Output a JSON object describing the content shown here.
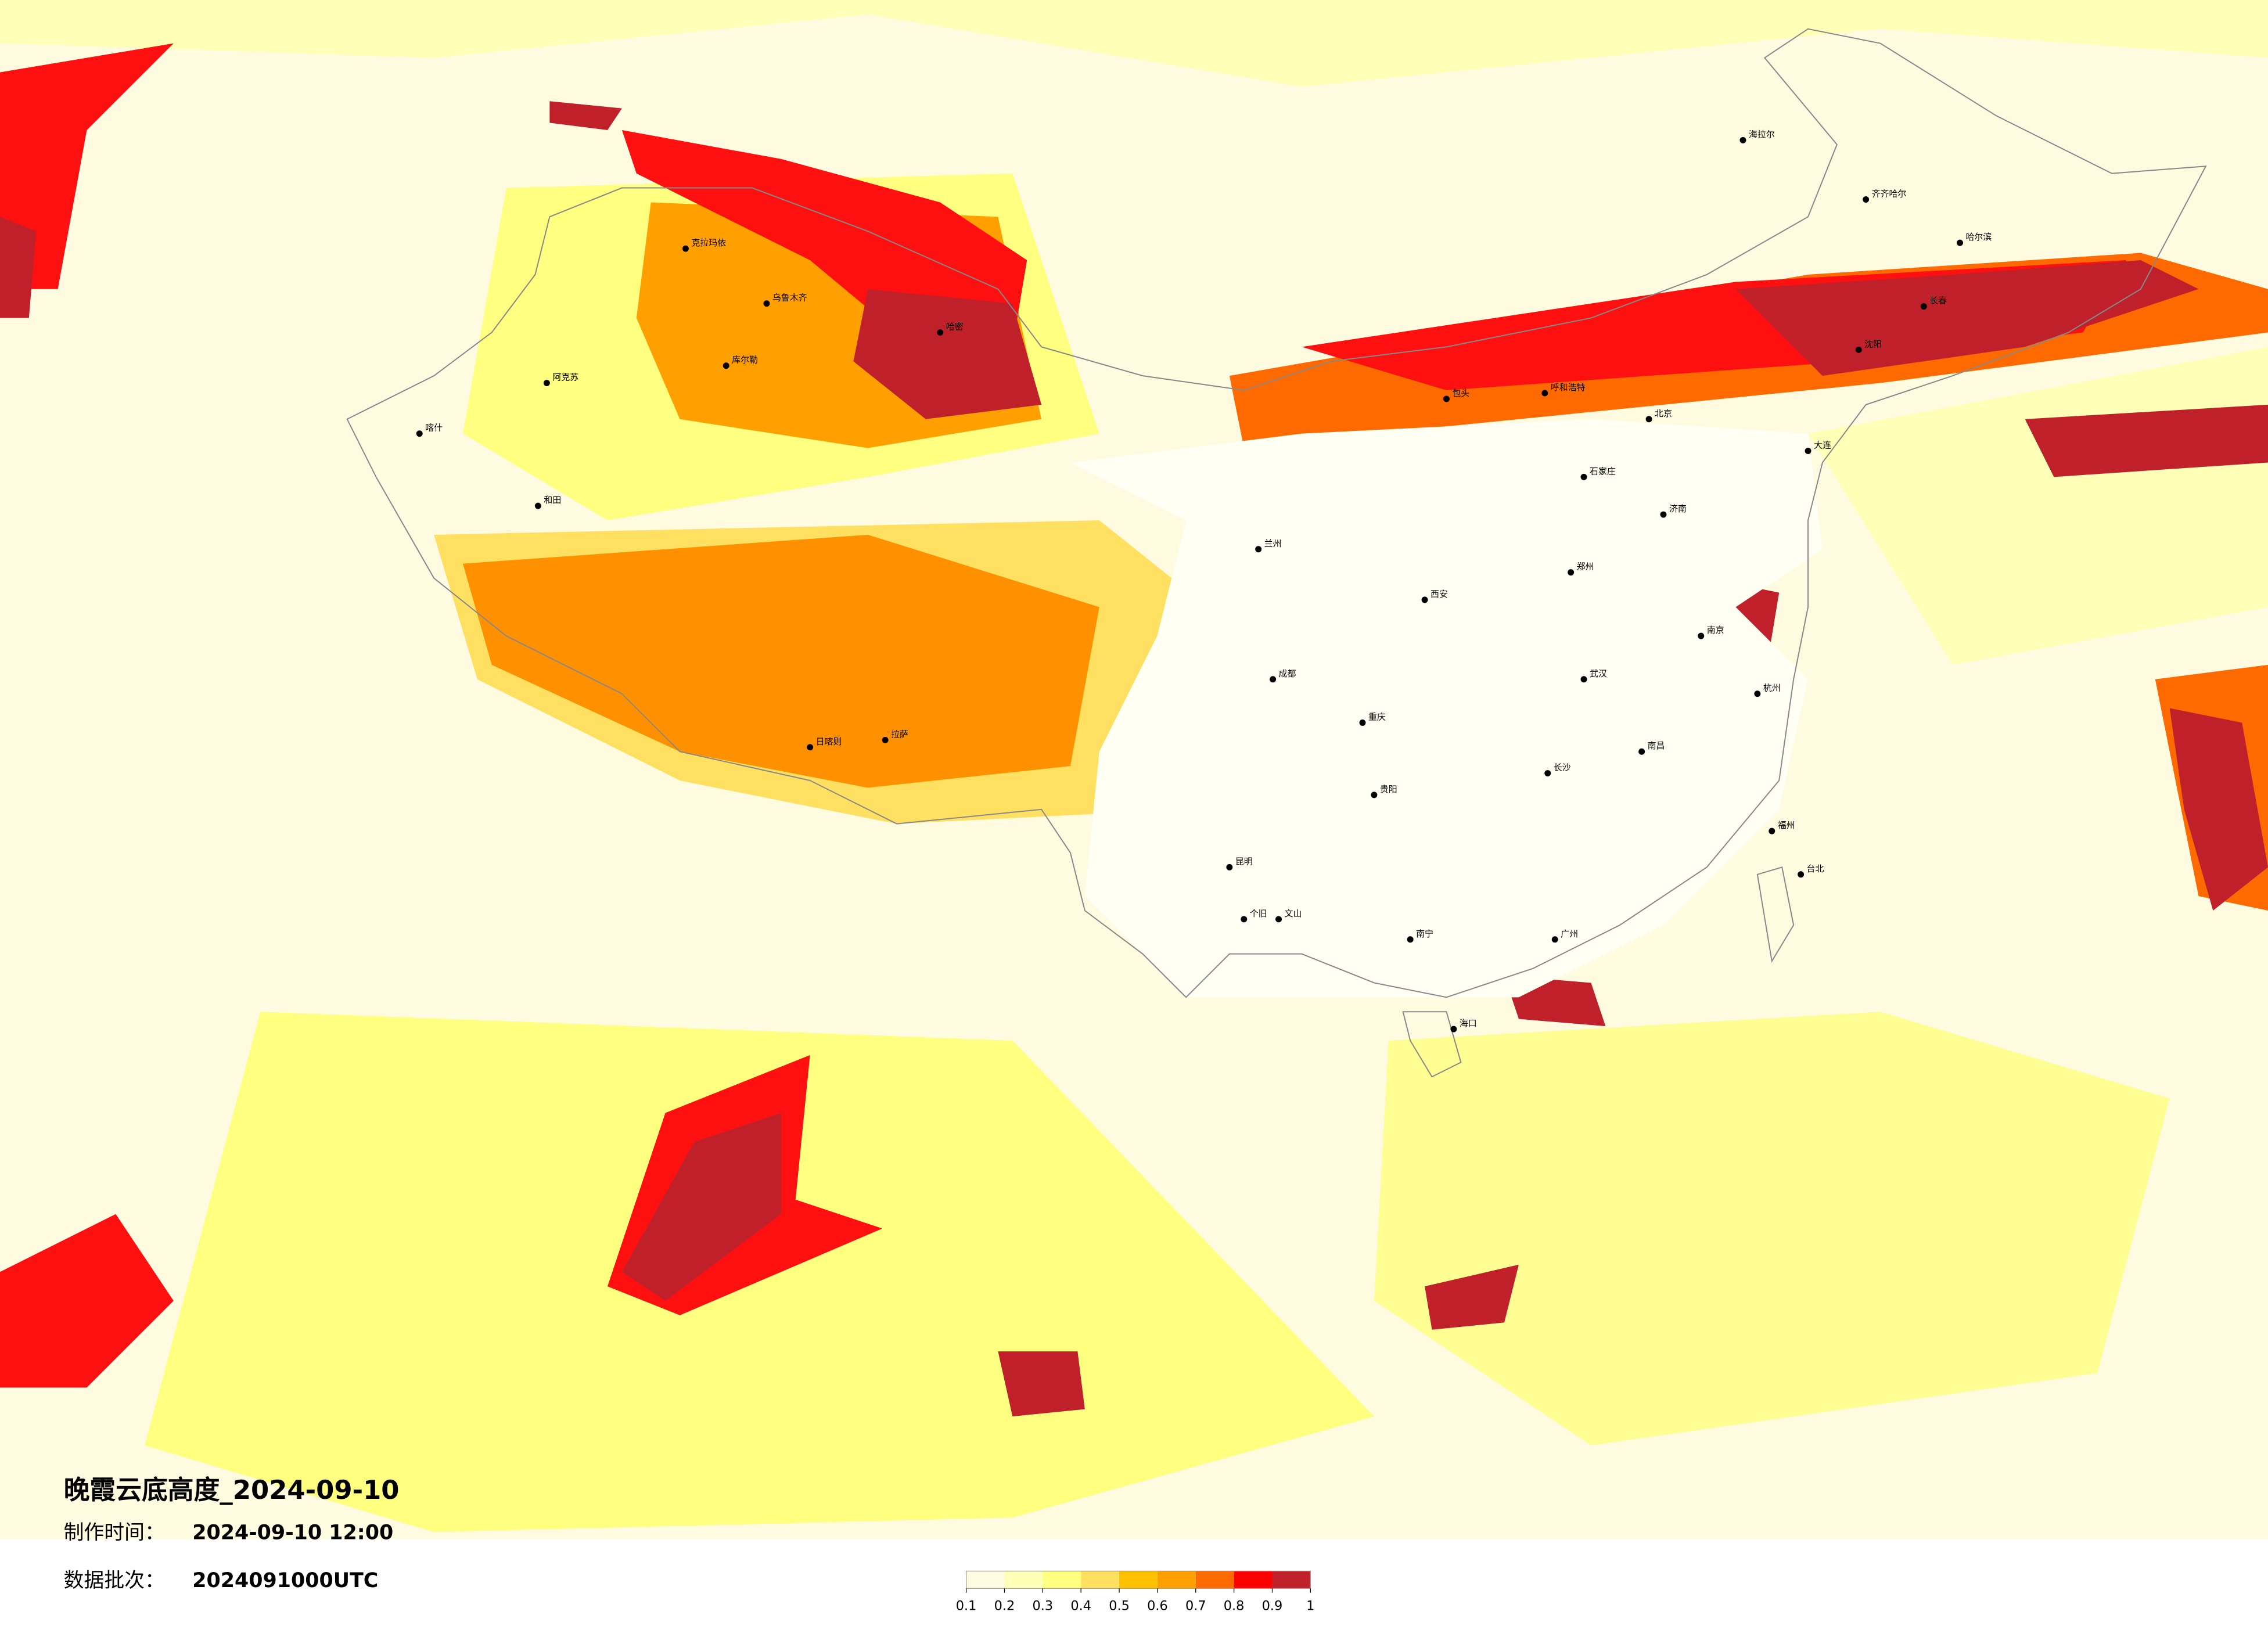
{
  "title": "晚霞云底高度_2024-09-10",
  "made_label": "制作时间：",
  "made_time": "2024-09-10 12:00",
  "batch_label": "数据批次：",
  "batch": "2024091000UTC",
  "colorbar": {
    "ticks": [
      0.1,
      0.2,
      0.3,
      0.4,
      0.5,
      0.6,
      0.7,
      0.8,
      0.9,
      1
    ],
    "colors": [
      "#fffbe0",
      "#ffffb8",
      "#ffff80",
      "#ffe060",
      "#ffc000",
      "#ffa000",
      "#ff6a00",
      "#ff0000",
      "#c0202a"
    ]
  },
  "cities": [
    "克拉玛依",
    "乌鲁木齐",
    "库尔勒",
    "阿克苏",
    "喀什",
    "和田",
    "哈密",
    "日喀则",
    "拉萨",
    "海拉尔",
    "齐齐哈尔",
    "哈尔滨",
    "长春",
    "沈阳",
    "大连",
    "北京",
    "石家庄",
    "呼和浩特",
    "包头",
    "济南",
    "郑州",
    "西安",
    "兰州",
    "成都",
    "重庆",
    "贵阳",
    "昆明",
    "个旧",
    "文山",
    "长沙",
    "武汉",
    "南昌",
    "南京",
    "杭州",
    "福州",
    "台北",
    "广州",
    "南宁",
    "海口"
  ]
}
